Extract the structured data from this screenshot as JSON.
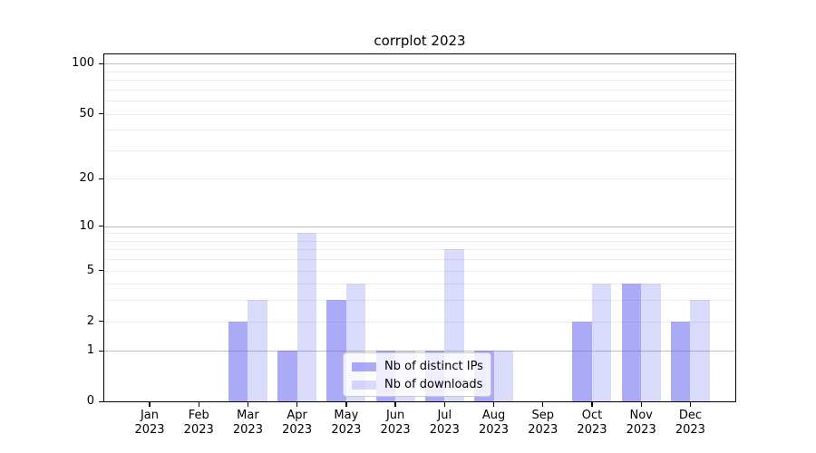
{
  "chart_data": {
    "type": "bar",
    "title": "corrplot 2023",
    "categories": [
      "Jan",
      "Feb",
      "Mar",
      "Apr",
      "May",
      "Jun",
      "Jul",
      "Aug",
      "Sep",
      "Oct",
      "Nov",
      "Dec"
    ],
    "year_label": "2023",
    "series": [
      {
        "name": "Nb of distinct IPs",
        "values": [
          0,
          0,
          2,
          1,
          3,
          1,
          1,
          1,
          0,
          2,
          4,
          2
        ],
        "color": "rgba(100,100,240,0.55)"
      },
      {
        "name": "Nb of downloads",
        "values": [
          0,
          0,
          3,
          9,
          4,
          1,
          7,
          1,
          0,
          4,
          4,
          3
        ],
        "color": "rgba(100,100,240,0.24)"
      }
    ],
    "xlabel": "",
    "ylabel": "",
    "yscale": "log1p",
    "y_ticks": [
      100,
      50,
      20,
      10,
      5,
      2,
      1,
      0
    ],
    "y_minor_ticks": [
      3,
      4,
      6,
      7,
      8,
      9,
      30,
      40,
      60,
      70,
      80,
      90
    ],
    "ylim": [
      0,
      115
    ],
    "grid": true,
    "legend_position": "lower-center"
  },
  "colors": {
    "grid_major": "#bdbdbd",
    "grid_minor": "#ebebeb",
    "axis": "#000000",
    "legend_border": "#c9c9c9"
  }
}
